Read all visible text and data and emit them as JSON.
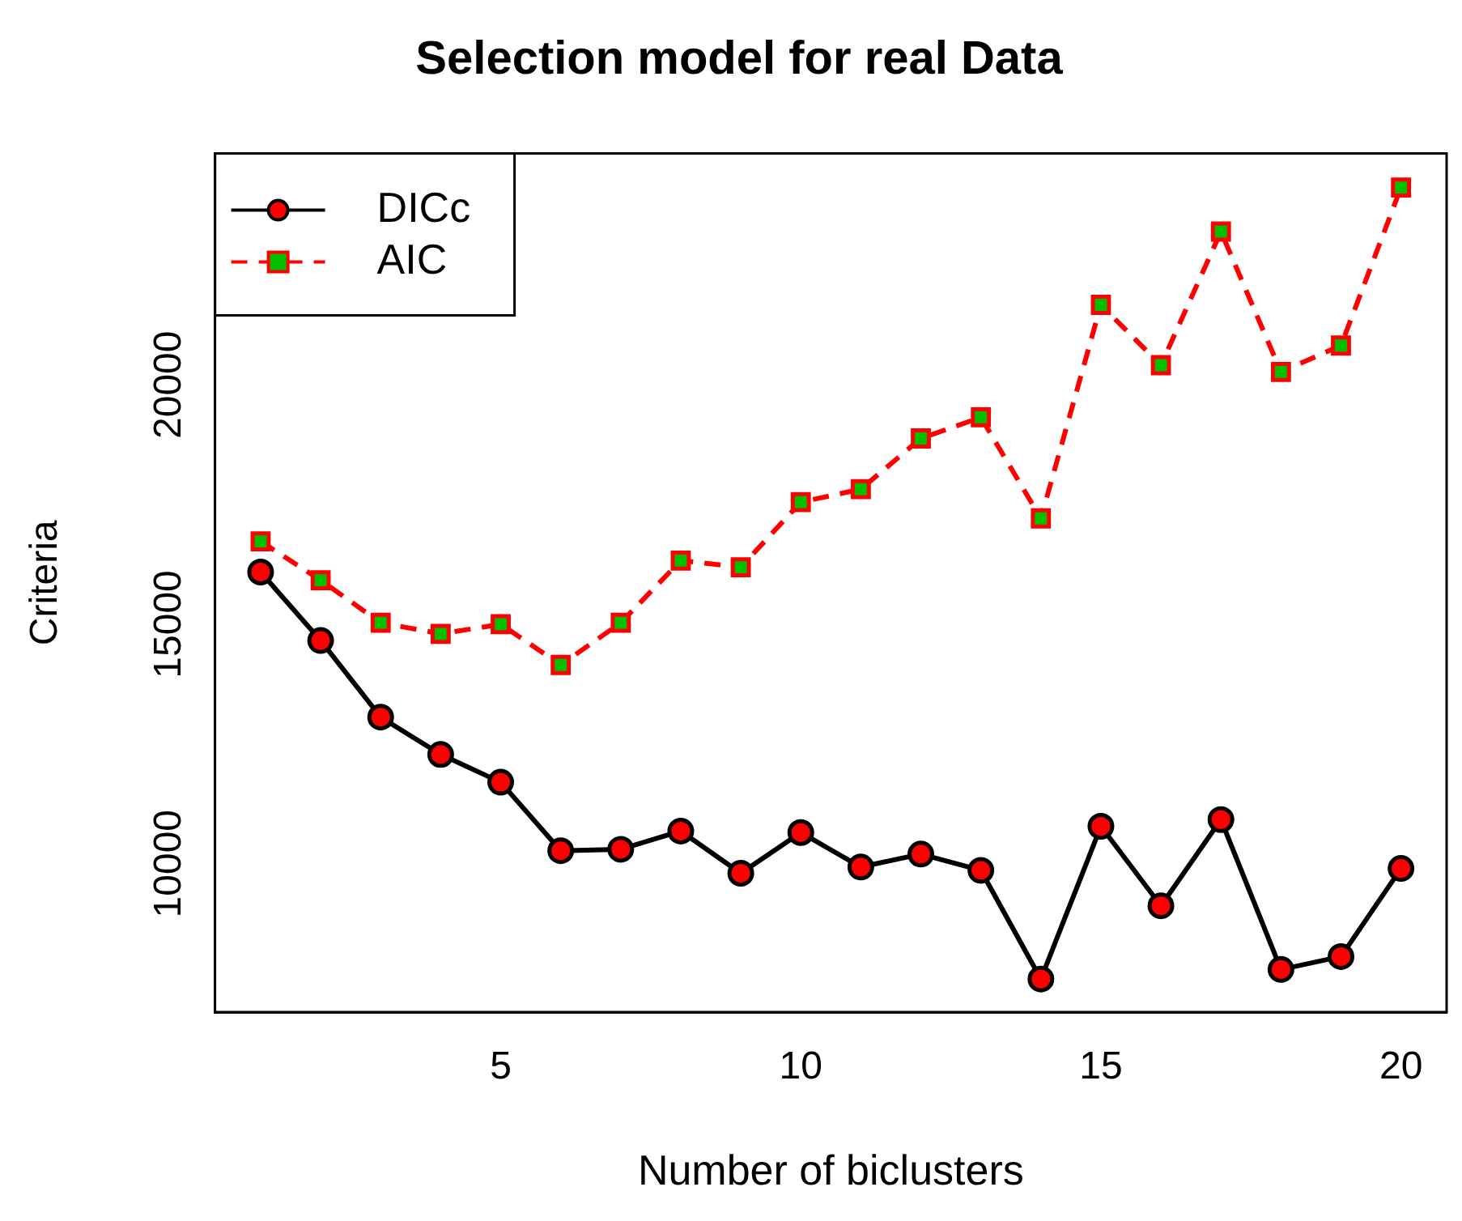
{
  "chart_data": {
    "type": "line",
    "title": "Selection model for real Data",
    "xlabel": "Number of biclusters",
    "ylabel": "Criteria",
    "x": [
      1,
      2,
      3,
      4,
      5,
      6,
      7,
      8,
      9,
      10,
      11,
      12,
      13,
      14,
      15,
      16,
      17,
      18,
      19,
      20
    ],
    "series": [
      {
        "name": "DICc",
        "color": "#000000",
        "colors": [
          "#ff0000",
          "#ff0000",
          "#ff0000",
          "#ff0000",
          "#ff0000",
          "#ff0000",
          "#ff0000",
          "#ff0000",
          "#ff0000",
          "#ff0000",
          "#ff0000",
          "#ff0000",
          "#ff0000",
          "#ff0000",
          "#ff0000",
          "#ff0000",
          "#ff0000",
          "#ff0000",
          "#ff0000",
          "#ff0000"
        ],
        "marker": "circle",
        "line_style": "solid",
        "values": [
          16090,
          14660,
          13060,
          12280,
          11700,
          10270,
          10300,
          10680,
          9800,
          10650,
          9930,
          10200,
          9860,
          7590,
          10780,
          9120,
          10920,
          7790,
          8060,
          9900
        ]
      },
      {
        "name": "AIC",
        "color": "#ff0000",
        "colors": [
          "#00c000",
          "#00c000",
          "#00c000",
          "#00c000",
          "#00c000",
          "#00c000",
          "#00c000",
          "#00c000",
          "#00c000",
          "#00c000",
          "#00c000",
          "#00c000",
          "#00c000",
          "#00c000",
          "#00c000",
          "#00c000",
          "#00c000",
          "#00c000",
          "#00c000",
          "#00c000"
        ],
        "marker": "square",
        "line_style": "dashed",
        "values": [
          16730,
          15920,
          15030,
          14800,
          15000,
          14150,
          15030,
          16330,
          16190,
          17550,
          17820,
          18880,
          19320,
          17210,
          21670,
          20410,
          23200,
          20270,
          20820,
          24120
        ]
      }
    ],
    "xlim": [
      0.24,
      20.76
    ],
    "xticks": [
      5,
      10,
      15,
      20
    ],
    "ylim": [
      6900,
      24830
    ],
    "yticks": [
      10000,
      15000,
      20000
    ],
    "grid": false,
    "legend": "top left"
  }
}
